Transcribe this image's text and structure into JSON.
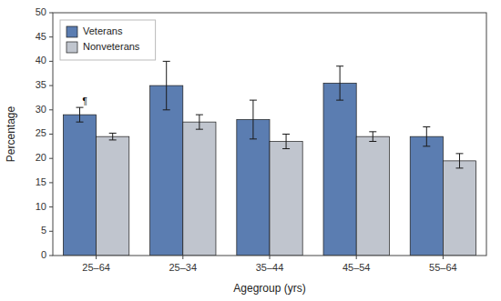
{
  "chart_data": {
    "type": "bar",
    "xlabel": "Agegroup (yrs)",
    "ylabel": "Percentage",
    "categories": [
      "25–64",
      "25–34",
      "35–44",
      "45–54",
      "55–64"
    ],
    "series": [
      {
        "name": "Veterans",
        "color": "#5B7DB1",
        "values": [
          29,
          35,
          28,
          35.5,
          24.5
        ],
        "errors": [
          1.5,
          5,
          4,
          3.5,
          2
        ]
      },
      {
        "name": "Nonveterans",
        "color": "#C0C5CE",
        "values": [
          24.5,
          27.5,
          23.5,
          24.5,
          19.5
        ],
        "errors": [
          0.7,
          1.5,
          1.5,
          1,
          1.5
        ]
      }
    ],
    "ylim": [
      0,
      50
    ],
    "yticks": [
      0,
      5,
      10,
      15,
      20,
      25,
      30,
      35,
      40,
      45,
      50
    ],
    "grid": false,
    "legend": "upper left",
    "annotations": [
      "¶"
    ]
  }
}
